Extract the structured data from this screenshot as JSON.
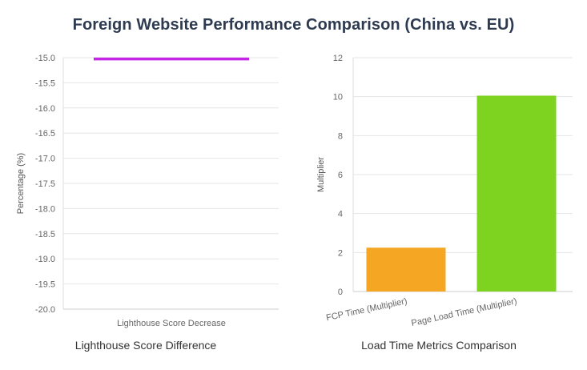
{
  "page": {
    "title": "Foreign Website Performance Comparison (China vs. EU)"
  },
  "chart_data": [
    {
      "type": "bar",
      "caption": "Lighthouse Score Difference",
      "ylabel": "Percentage (%)",
      "xlabel": "",
      "ylim": [
        -20.0,
        -15.0
      ],
      "yticks": [
        "-15.0",
        "-15.5",
        "-16.0",
        "-16.5",
        "-17.0",
        "-17.5",
        "-18.0",
        "-18.5",
        "-19.0",
        "-19.5",
        "-20.0"
      ],
      "categories": [
        "Lighthouse Score Decrease"
      ],
      "values": [
        -15.03
      ],
      "colors": [
        "#c526e6"
      ],
      "grid": true,
      "legend": "none"
    },
    {
      "type": "bar",
      "caption": "Load Time Metrics Comparison",
      "ylabel": "Multiplier",
      "xlabel": "",
      "ylim": [
        0,
        12
      ],
      "yticks": [
        "12",
        "10",
        "8",
        "6",
        "4",
        "2",
        "0"
      ],
      "categories": [
        "FCP Time (Multiplier)",
        "Page Load Time (Multiplier)"
      ],
      "values": [
        2.25,
        10.05
      ],
      "colors": [
        "#f5a623",
        "#7ed321"
      ],
      "grid": true,
      "legend": "none"
    }
  ]
}
